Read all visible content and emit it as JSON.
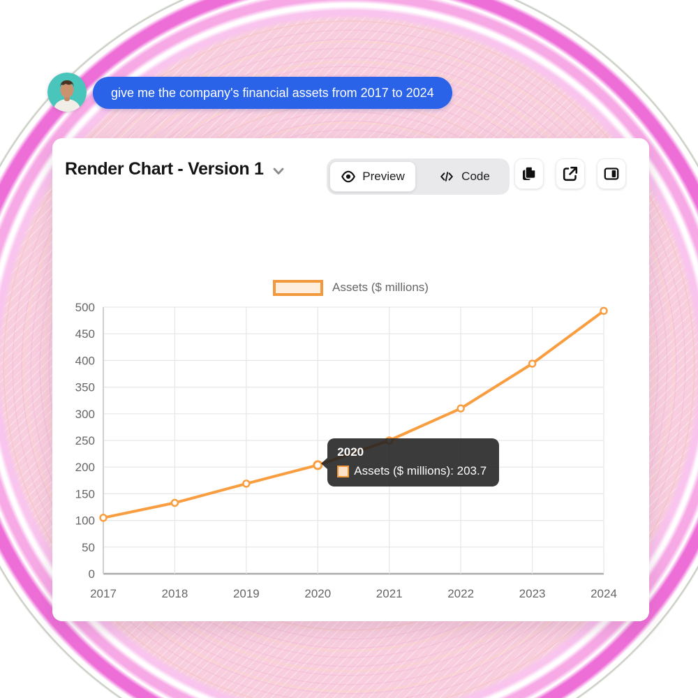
{
  "chat": {
    "message": "give me the company's financial assets from 2017 to 2024"
  },
  "panel": {
    "title": "Render Chart - Version 1",
    "tabs": [
      {
        "label": "Preview",
        "icon": "eye-icon",
        "active": true
      },
      {
        "label": "Code",
        "icon": "code-icon",
        "active": false
      }
    ],
    "actions": [
      {
        "icon": "copy-icon"
      },
      {
        "icon": "external-link-icon"
      },
      {
        "icon": "panel-right-icon"
      }
    ]
  },
  "colors": {
    "accent_orange": "#f99e40",
    "legend_fill": "#fdeedd",
    "bubble_blue": "#2a63e8",
    "ring_magenta": "#ee6ed8",
    "grid_gray": "#e6e6e6",
    "tick_gray": "#666666"
  },
  "chart_data": {
    "type": "line",
    "categories": [
      "2017",
      "2018",
      "2019",
      "2020",
      "2021",
      "2022",
      "2023",
      "2024"
    ],
    "series": [
      {
        "name": "Assets ($ millions)",
        "values": [
          105,
          133,
          169,
          203.7,
          250,
          310,
          394,
          493
        ]
      }
    ],
    "title": "",
    "xlabel": "",
    "ylabel": "",
    "ylim": [
      0,
      500
    ],
    "ytick_step": 50,
    "grid": true,
    "legend_position": "top-center",
    "tooltip": {
      "index": 3,
      "title": "2020",
      "label": "Assets ($ millions): 203.7",
      "value": 203.7
    }
  }
}
